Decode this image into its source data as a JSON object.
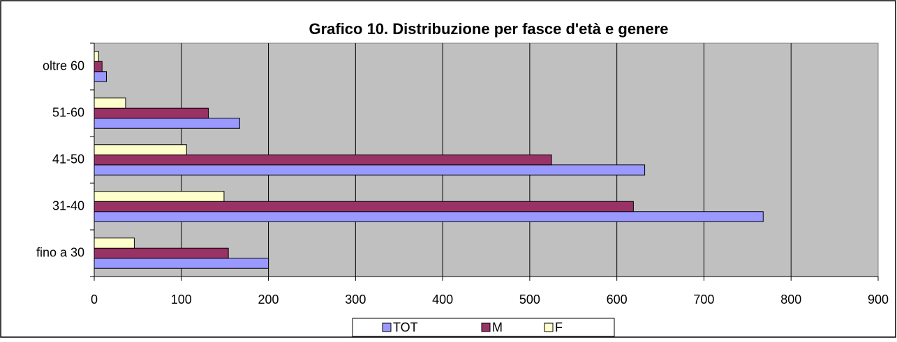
{
  "chart_data": {
    "type": "barh",
    "title": "Grafico 10. Distribuzione per fasce d'età e genere",
    "categories": [
      "fino a 30",
      "31-40",
      "41-50",
      "51-60",
      "oltre 60"
    ],
    "series": [
      {
        "name": "TOT",
        "color": "#9999ff",
        "values": [
          200,
          768,
          632,
          167,
          14
        ]
      },
      {
        "name": "M",
        "color": "#993366",
        "values": [
          154,
          619,
          525,
          131,
          9
        ]
      },
      {
        "name": "F",
        "color": "#ffffcc",
        "values": [
          46,
          149,
          106,
          36,
          5
        ]
      }
    ],
    "xlim": [
      0,
      900
    ],
    "xticks": [
      0,
      100,
      200,
      300,
      400,
      500,
      600,
      700,
      800,
      900
    ],
    "grid": true
  }
}
